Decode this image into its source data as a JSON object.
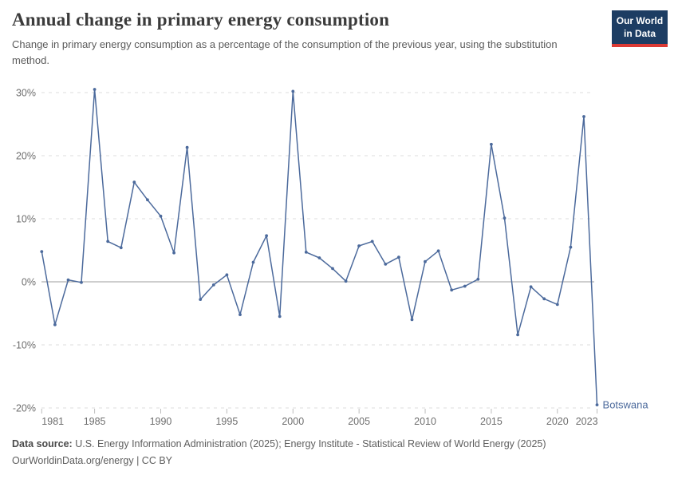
{
  "header": {
    "title": "Annual change in primary energy consumption",
    "subtitle": "Change in primary energy consumption as a percentage of the consumption of the previous year, using the substitution method.",
    "logo": {
      "line1": "Our World",
      "line2": "in Data",
      "bg_color": "#1d3d63",
      "accent_color": "#dc3a34"
    }
  },
  "chart_data": {
    "type": "line",
    "title": "Annual change in primary energy consumption",
    "entity_label": "Botswana",
    "unit": "%",
    "grid": true,
    "legend_position": "end-of-line-label",
    "x": [
      1981,
      1982,
      1983,
      1984,
      1985,
      1986,
      1987,
      1988,
      1989,
      1990,
      1991,
      1992,
      1993,
      1994,
      1995,
      1996,
      1997,
      1998,
      1999,
      2000,
      2001,
      2002,
      2003,
      2004,
      2005,
      2006,
      2007,
      2008,
      2009,
      2010,
      2011,
      2012,
      2013,
      2014,
      2015,
      2016,
      2017,
      2018,
      2019,
      2020,
      2021,
      2022,
      2023
    ],
    "series": [
      {
        "name": "Botswana",
        "color": "#4c6a9c",
        "values": [
          4.8,
          -6.8,
          0.3,
          -0.1,
          30.5,
          6.4,
          5.4,
          15.8,
          13.0,
          10.4,
          4.6,
          21.3,
          -2.8,
          -0.5,
          1.1,
          -5.2,
          3.1,
          7.3,
          -5.5,
          30.2,
          4.7,
          3.8,
          2.1,
          0.1,
          5.7,
          6.4,
          2.8,
          3.9,
          -6.0,
          3.2,
          4.9,
          -1.3,
          -0.7,
          0.4,
          21.8,
          10.1,
          -8.4,
          -0.8,
          -2.7,
          -3.6,
          5.5,
          26.2,
          -19.5
        ]
      }
    ],
    "ylim": [
      -20,
      30
    ],
    "yticks": [
      {
        "value": 30,
        "label": "30%"
      },
      {
        "value": 20,
        "label": "20%"
      },
      {
        "value": 10,
        "label": "10%"
      },
      {
        "value": 0,
        "label": "0%"
      },
      {
        "value": -10,
        "label": "-10%"
      },
      {
        "value": -20,
        "label": "-20%"
      }
    ],
    "xticks": [
      1981,
      1985,
      1990,
      1995,
      2000,
      2005,
      2010,
      2015,
      2020,
      2023
    ],
    "colors": {
      "line": "#4c6a9c",
      "gridline": "#dedede",
      "zero_line": "#9e9e9e",
      "tick_text": "#6e6e6e",
      "tick_mark": "#bdbdbd"
    }
  },
  "footer": {
    "datasource_label": "Data source:",
    "datasource_text": " U.S. Energy Information Administration (2025); Energy Institute - Statistical Review of World Energy (2025)",
    "license_line": "OurWorldinData.org/energy | CC BY"
  }
}
